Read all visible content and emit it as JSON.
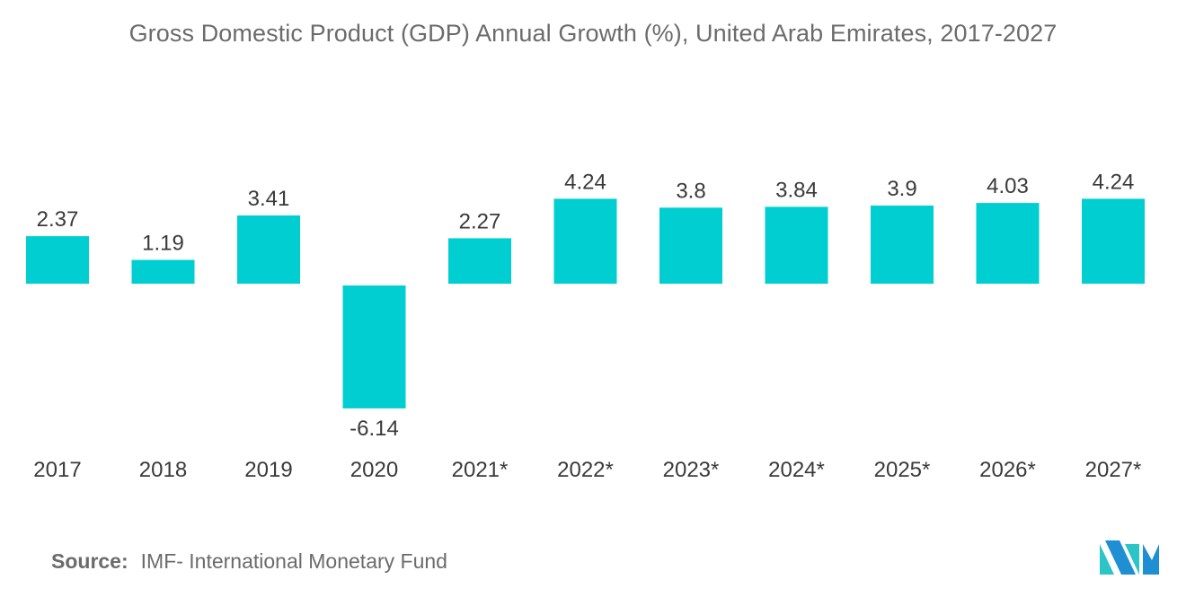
{
  "chart_data": {
    "type": "bar",
    "title": "Gross Domestic Product (GDP) Annual Growth (%), United Arab Emirates, 2017-2027",
    "categories": [
      "2017",
      "2018",
      "2019",
      "2020",
      "2021*",
      "2022*",
      "2023*",
      "2024*",
      "2025*",
      "2026*",
      "2027*"
    ],
    "values": [
      2.37,
      1.19,
      3.41,
      -6.14,
      2.27,
      4.24,
      3.8,
      3.84,
      3.9,
      4.03,
      4.24
    ],
    "data_labels": [
      "2.37",
      "1.19",
      "3.41",
      "-6.14",
      "2.27",
      "4.24",
      "3.8",
      "3.84",
      "3.9",
      "4.03",
      "4.24"
    ],
    "xlabel": "",
    "ylabel": "",
    "grid": false,
    "legend": "none",
    "bar_color": "#00CED1"
  },
  "source": {
    "label": "Source:",
    "text": "IMF- International Monetary Fund"
  },
  "logo": {
    "icon": "mordor-intelligence-logo-icon",
    "color_primary": "#1f8fd4",
    "color_secondary": "#2bc5c8"
  }
}
